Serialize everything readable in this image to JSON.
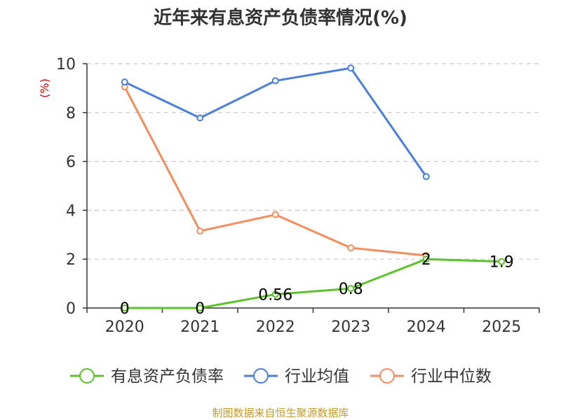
{
  "chart_data": {
    "type": "line",
    "title": "近年来有息资产负债率情况(%)",
    "ylabel": "(%)",
    "xlabel": "",
    "categories": [
      "2020",
      "2021",
      "2022",
      "2023",
      "2024",
      "2025"
    ],
    "ylim": [
      0,
      10
    ],
    "yticks": [
      0,
      2,
      4,
      6,
      8,
      10
    ],
    "grid": true,
    "legend_position": "bottom",
    "series": [
      {
        "name": "有息资产负债率",
        "color": "#5bc228",
        "values": [
          0,
          0,
          0.56,
          0.8,
          2,
          1.9
        ],
        "data_labels": [
          "0",
          "0",
          "0.56",
          "0.8",
          "2",
          "1.9"
        ]
      },
      {
        "name": "行业均值",
        "color": "#4a7fdc",
        "values": [
          9.25,
          7.78,
          9.3,
          9.82,
          5.38,
          null
        ]
      },
      {
        "name": "行业中位数",
        "color": "#f68c5c",
        "values": [
          9.05,
          3.15,
          3.82,
          2.46,
          2.15,
          null
        ]
      }
    ]
  },
  "source_text": "制图数据来自恒生聚源数据库",
  "source_color": "#c49a2c"
}
